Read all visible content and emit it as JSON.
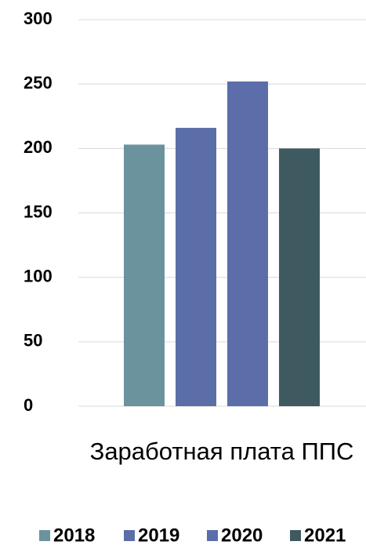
{
  "chart_data": {
    "type": "bar",
    "categories": [
      "Заработная плата ППС"
    ],
    "series": [
      {
        "name": "2018",
        "color": "#6a939e",
        "values": [
          203
        ]
      },
      {
        "name": "2019",
        "color": "#5b6ea8",
        "values": [
          216
        ]
      },
      {
        "name": "2020",
        "color": "#5b6eaa",
        "values": [
          252
        ]
      },
      {
        "name": "2021",
        "color": "#3e5a60",
        "values": [
          200
        ]
      }
    ],
    "ylim": [
      0,
      300
    ],
    "yticks": [
      0,
      50,
      100,
      150,
      200,
      250,
      300
    ],
    "grid": true,
    "legend": "bottom"
  }
}
